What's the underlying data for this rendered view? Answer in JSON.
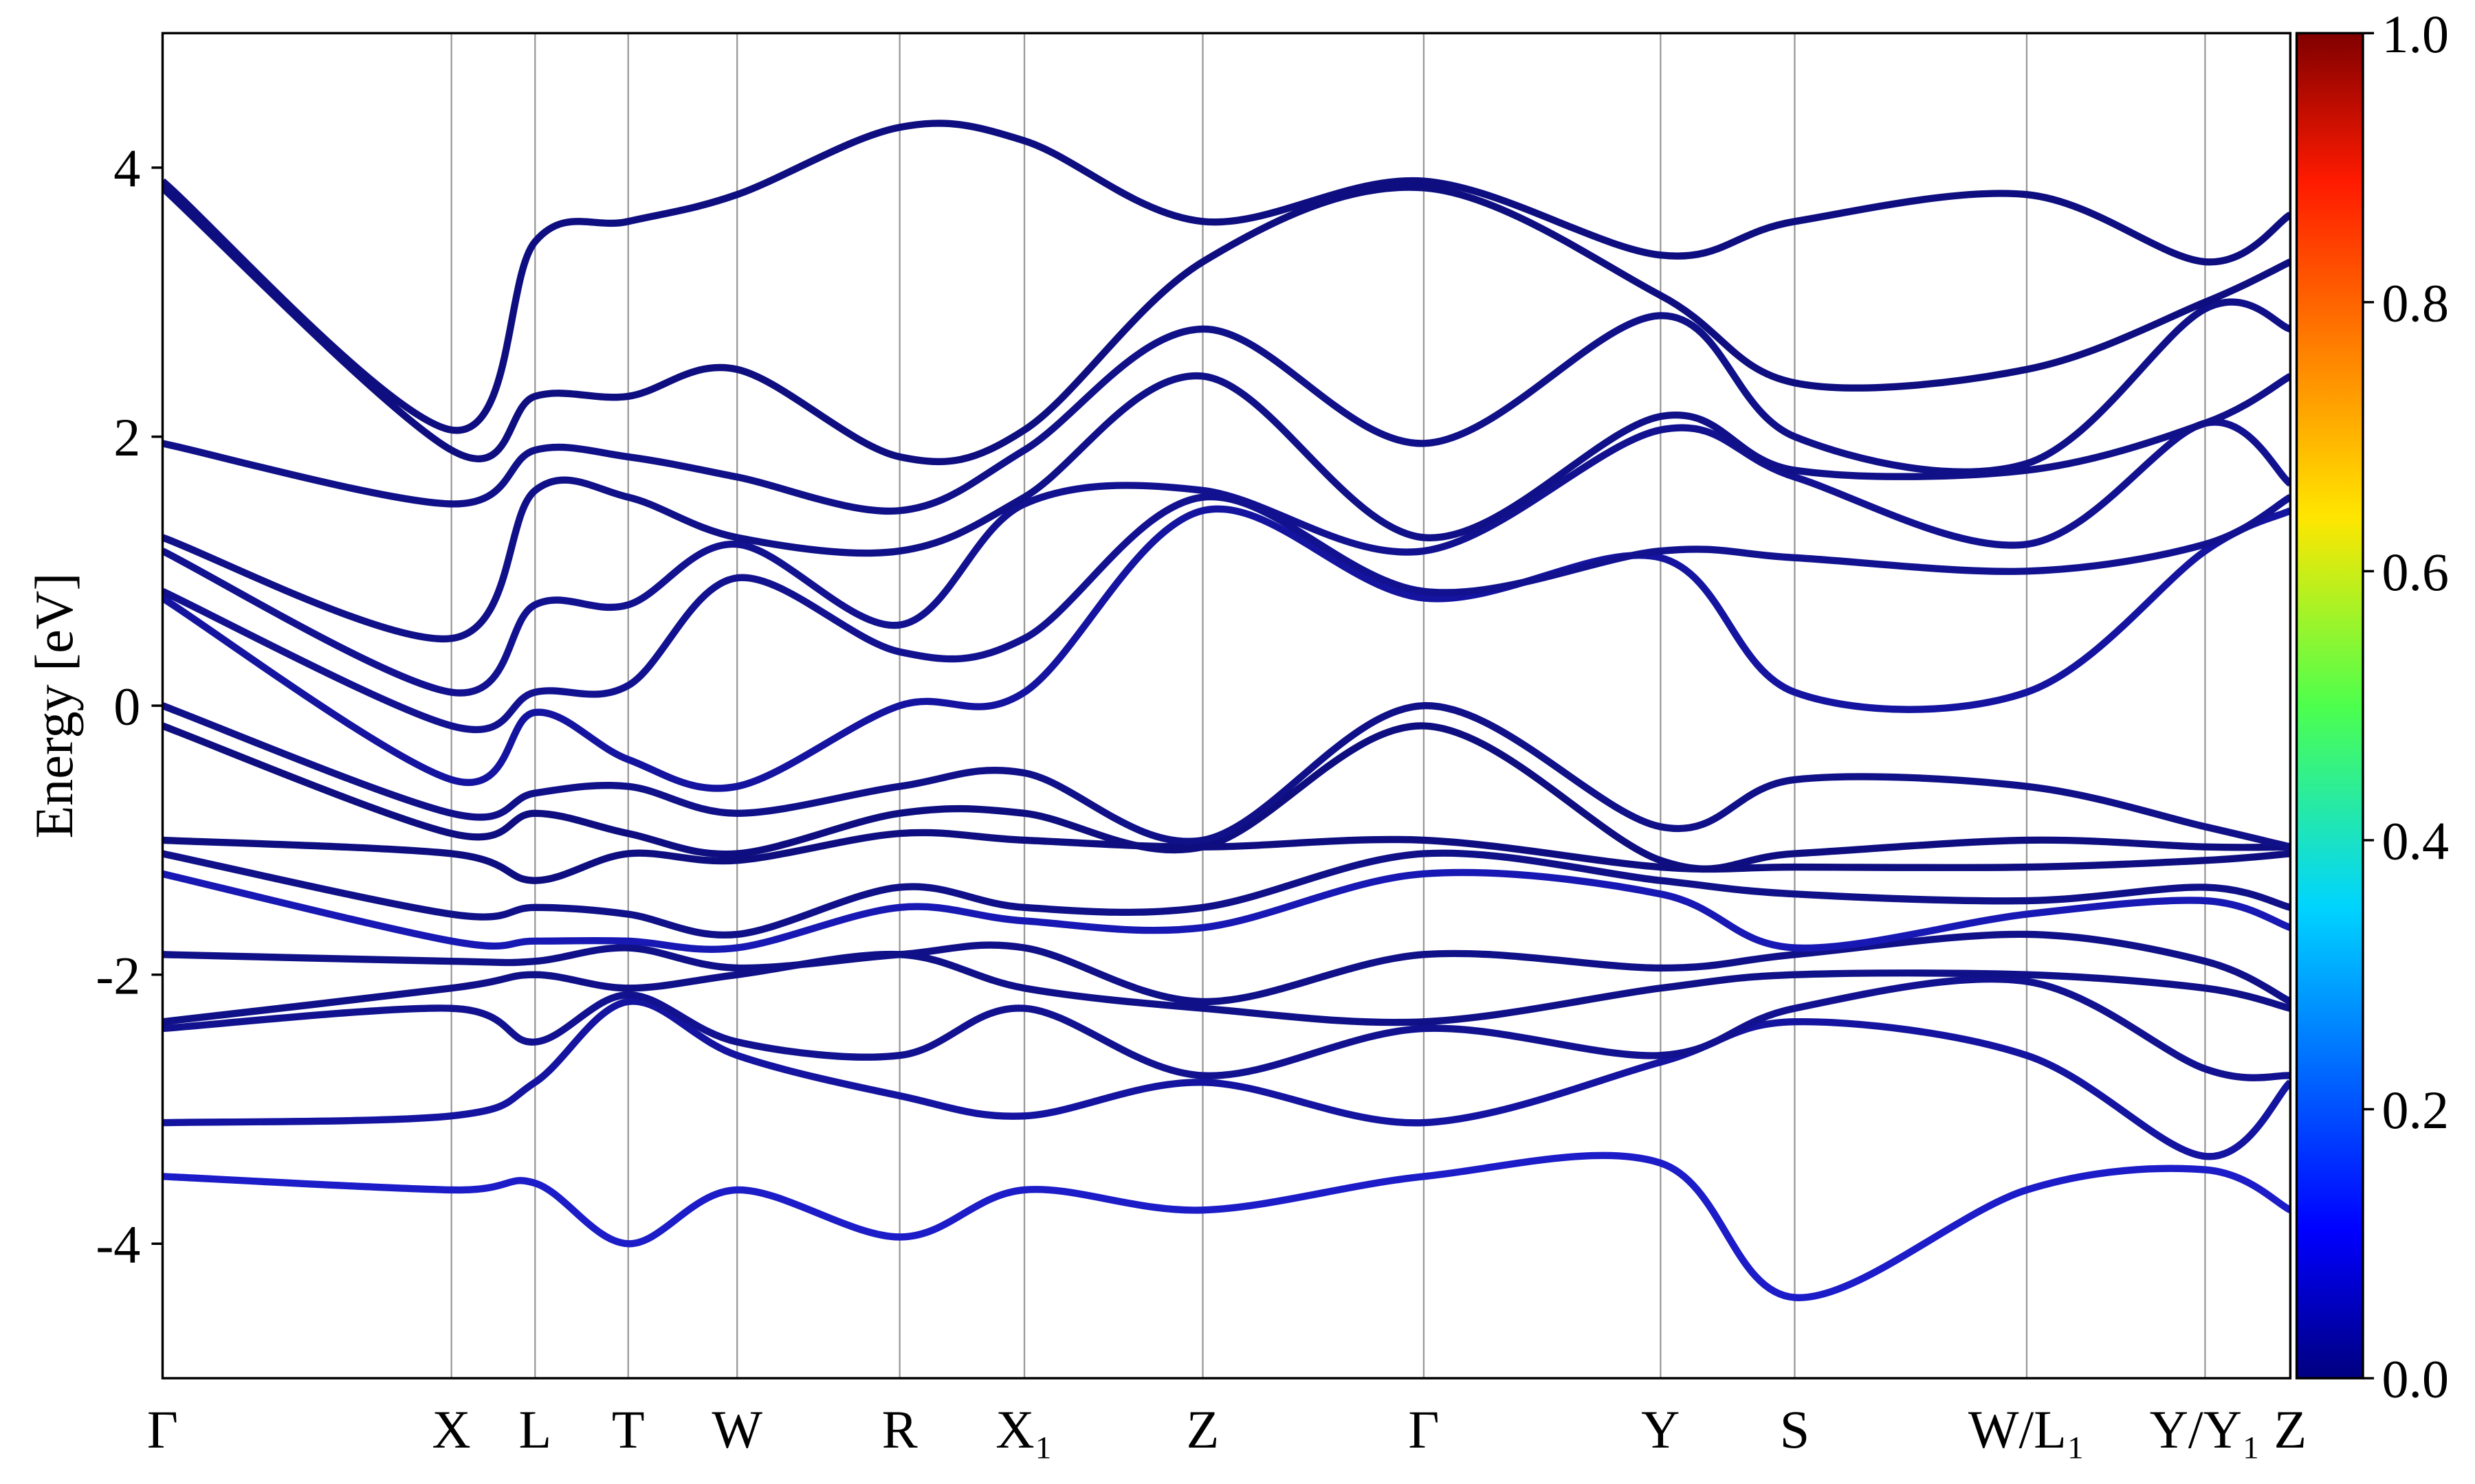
{
  "chart_data": {
    "type": "line",
    "y_label": "Energy [eV]",
    "x": [
      0,
      1.83,
      2.36,
      2.95,
      3.64,
      4.67,
      5.46,
      6.59,
      7.99,
      9.49,
      10.34,
      11.81,
      12.94,
      13.48
    ],
    "xlim": [
      0,
      13.48
    ],
    "xticks": [
      {
        "value": 0,
        "label": "Γ"
      },
      {
        "value": 1.83,
        "label": "X"
      },
      {
        "value": 2.36,
        "label": "L"
      },
      {
        "value": 2.95,
        "label": "T"
      },
      {
        "value": 3.64,
        "label": "W"
      },
      {
        "value": 4.67,
        "label": "R"
      },
      {
        "value": 5.46,
        "label": "X₁"
      },
      {
        "value": 6.59,
        "label": "Z"
      },
      {
        "value": 7.99,
        "label": "Γ"
      },
      {
        "value": 9.49,
        "label": "Y"
      },
      {
        "value": 10.34,
        "label": "S"
      },
      {
        "value": 11.81,
        "label": "W/L₁"
      },
      {
        "value": 12.94,
        "label": "Y/Y₁"
      },
      {
        "value": 13.48,
        "label": "Z"
      }
    ],
    "ylim": [
      -5,
      5
    ],
    "yticks": [
      -4,
      -2,
      0,
      2,
      4
    ],
    "grid": true,
    "colorbar": {
      "lim": [
        0,
        1
      ],
      "ticks": [
        {
          "value": 0,
          "label": "0.0"
        },
        0.2,
        0.4,
        0.6,
        0.8,
        {
          "value": 1,
          "label": "1.0"
        }
      ]
    },
    "series": [
      {
        "color": "#1c1cc8",
        "values": [
          -3.5,
          -3.6,
          -3.55,
          -4.0,
          -3.6,
          -3.95,
          -3.6,
          -3.75,
          -3.5,
          -3.4,
          -4.4,
          -3.6,
          -3.45,
          -3.75
        ]
      },
      {
        "color": "#1414a0",
        "values": [
          -3.1,
          -3.05,
          -2.8,
          -2.2,
          -2.6,
          -2.9,
          -3.05,
          -2.8,
          -3.1,
          -2.65,
          -2.35,
          -2.6,
          -3.35,
          -2.8
        ]
      },
      {
        "color": "#121290",
        "values": [
          -2.4,
          -2.25,
          -2.5,
          -2.15,
          -2.5,
          -2.6,
          -2.25,
          -2.75,
          -2.4,
          -2.6,
          -2.25,
          -2.05,
          -2.7,
          -2.75
        ]
      },
      {
        "color": "#101088",
        "values": [
          -2.35,
          -2.1,
          -2.0,
          -2.1,
          -2.0,
          -1.85,
          -2.1,
          -2.25,
          -2.35,
          -2.1,
          -2.0,
          -2.0,
          -2.1,
          -2.25
        ]
      },
      {
        "color": "#101088",
        "values": [
          -1.85,
          -1.9,
          -1.9,
          -1.8,
          -1.95,
          -1.85,
          -1.8,
          -2.2,
          -1.85,
          -1.95,
          -1.85,
          -1.7,
          -1.9,
          -2.2
        ]
      },
      {
        "color": "#1818b4",
        "values": [
          -1.25,
          -1.75,
          -1.75,
          -1.75,
          -1.8,
          -1.5,
          -1.6,
          -1.65,
          -1.25,
          -1.4,
          -1.8,
          -1.55,
          -1.45,
          -1.65
        ]
      },
      {
        "color": "#101088",
        "values": [
          -1.1,
          -1.55,
          -1.5,
          -1.55,
          -1.7,
          -1.35,
          -1.5,
          -1.5,
          -1.1,
          -1.3,
          -1.4,
          -1.45,
          -1.35,
          -1.5
        ]
      },
      {
        "color": "#0e0e80",
        "values": [
          -1.0,
          -1.1,
          -1.3,
          -1.1,
          -1.15,
          -0.95,
          -1.0,
          -1.05,
          -1.0,
          -1.2,
          -1.2,
          -1.2,
          -1.15,
          -1.1
        ]
      },
      {
        "color": "#0e0e80",
        "values": [
          -0.15,
          -0.95,
          -0.8,
          -0.95,
          -1.1,
          -0.8,
          -0.8,
          -1.05,
          -0.15,
          -1.15,
          -1.1,
          -1.0,
          -1.05,
          -1.05
        ]
      },
      {
        "color": "#101088",
        "values": [
          0.0,
          -0.8,
          -0.65,
          -0.6,
          -0.8,
          -0.6,
          -0.5,
          -1.0,
          0.0,
          -0.9,
          -0.55,
          -0.6,
          -0.9,
          -1.05
        ]
      },
      {
        "color": "#1414a0",
        "values": [
          0.8,
          -0.55,
          -0.05,
          -0.4,
          -0.6,
          0.0,
          0.1,
          1.45,
          0.8,
          1.1,
          0.1,
          0.1,
          1.15,
          1.45
        ]
      },
      {
        "color": "#121290",
        "values": [
          0.85,
          -0.15,
          0.1,
          0.15,
          0.95,
          0.4,
          0.5,
          1.55,
          0.85,
          1.15,
          1.1,
          1.0,
          1.2,
          1.55
        ]
      },
      {
        "color": "#121290",
        "values": [
          1.15,
          0.1,
          0.75,
          0.75,
          1.2,
          0.6,
          1.5,
          1.6,
          1.15,
          2.05,
          1.7,
          1.2,
          2.1,
          1.65
        ]
      },
      {
        "color": "#101088",
        "values": [
          1.25,
          0.5,
          1.6,
          1.55,
          1.25,
          1.15,
          1.55,
          2.45,
          1.25,
          2.15,
          1.75,
          1.75,
          2.1,
          2.45
        ]
      },
      {
        "color": "#101088",
        "values": [
          1.95,
          1.5,
          1.9,
          1.85,
          1.7,
          1.45,
          1.9,
          2.8,
          1.95,
          2.9,
          2.0,
          1.8,
          2.95,
          2.8
        ]
      },
      {
        "color": "#0e0e80",
        "values": [
          3.85,
          1.9,
          2.3,
          2.3,
          2.5,
          1.85,
          2.05,
          3.3,
          3.85,
          3.05,
          2.4,
          2.5,
          3.0,
          3.3
        ]
      },
      {
        "color": "#0e0e80",
        "values": [
          3.9,
          2.05,
          3.45,
          3.6,
          3.8,
          4.3,
          4.2,
          3.6,
          3.9,
          3.35,
          3.6,
          3.8,
          3.3,
          3.65
        ]
      }
    ]
  }
}
